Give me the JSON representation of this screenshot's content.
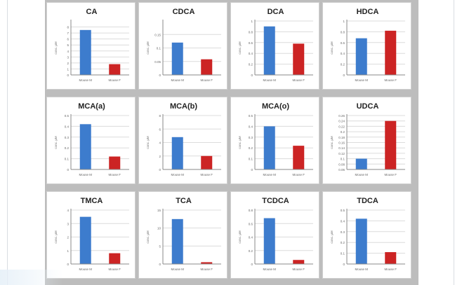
{
  "colors": {
    "wild_type": "#3d7ccd",
    "knockout": "#cc2424"
  },
  "chart_data": [
    {
      "type": "bar",
      "title": "CA",
      "ylabel": "conc. µM",
      "categories": [
        "Mouse M",
        "Mouse F"
      ],
      "values": [
        7.5,
        1.8
      ],
      "ylim": [
        0,
        9
      ],
      "yticks": [
        "0",
        "1",
        "2",
        "3",
        "4",
        "5",
        "6",
        "7",
        "8"
      ]
    },
    {
      "type": "bar",
      "title": "CDCA",
      "ylabel": "conc. µM",
      "categories": [
        "Mouse M",
        "Mouse F"
      ],
      "values": [
        0.12,
        0.058
      ],
      "ylim": [
        0,
        0.2
      ],
      "yticks": [
        "0",
        "0.05",
        "0.1",
        "0.15"
      ]
    },
    {
      "type": "bar",
      "title": "DCA",
      "ylabel": "conc. µM",
      "categories": [
        "Mouse M",
        "Mouse F"
      ],
      "values": [
        0.9,
        0.58
      ],
      "ylim": [
        0,
        1
      ],
      "yticks": [
        "0",
        "0.2",
        "0.4",
        "0.6",
        "0.8",
        "1"
      ]
    },
    {
      "type": "bar",
      "title": "HDCA",
      "ylabel": "conc. µM",
      "categories": [
        "Mouse M",
        "Mouse F"
      ],
      "values": [
        0.68,
        0.82
      ],
      "ylim": [
        0,
        1
      ],
      "yticks": [
        "0",
        "0.2",
        "0.4",
        "0.6",
        "0.8",
        "1"
      ]
    },
    {
      "type": "bar",
      "title": "MCA(a)",
      "ylabel": "conc. µM",
      "categories": [
        "Mouse M",
        "Mouse F"
      ],
      "values": [
        0.42,
        0.12
      ],
      "ylim": [
        0,
        0.5
      ],
      "yticks": [
        "0",
        "0.1",
        "0.2",
        "0.3",
        "0.4",
        "0.5"
      ]
    },
    {
      "type": "bar",
      "title": "MCA(b)",
      "ylabel": "conc. µM",
      "categories": [
        "Mouse M",
        "Mouse F"
      ],
      "values": [
        4.8,
        2.0
      ],
      "ylim": [
        0,
        8
      ],
      "yticks": [
        "0",
        "2",
        "4",
        "6",
        "8"
      ]
    },
    {
      "type": "bar",
      "title": "MCA(o)",
      "ylabel": "conc. µM",
      "categories": [
        "Mouse M",
        "Mouse F"
      ],
      "values": [
        0.4,
        0.22
      ],
      "ylim": [
        0,
        0.5
      ],
      "yticks": [
        "0",
        "0.1",
        "0.2",
        "0.3",
        "0.4",
        "0.5"
      ]
    },
    {
      "type": "bar",
      "title": "UDCA",
      "ylabel": "conc. µM",
      "categories": [
        "Mouse M",
        "Mouse F"
      ],
      "values": [
        0.1,
        0.24
      ],
      "ylim": [
        0.06,
        0.26
      ],
      "yticks": [
        "0.06",
        "0.08",
        "0.1",
        "0.12",
        "0.14",
        "0.16",
        "0.18",
        "0.2",
        "0.22",
        "0.24",
        "0.26"
      ]
    },
    {
      "type": "bar",
      "title": "TMCA",
      "ylabel": "conc. µM",
      "categories": [
        "Mouse M",
        "Mouse F"
      ],
      "values": [
        3.5,
        0.8
      ],
      "ylim": [
        0,
        4
      ],
      "yticks": [
        "0",
        "1",
        "2",
        "3",
        "4"
      ]
    },
    {
      "type": "bar",
      "title": "TCA",
      "ylabel": "conc. µM",
      "categories": [
        "Mouse M",
        "Mouse F"
      ],
      "values": [
        12.5,
        0.5
      ],
      "ylim": [
        0,
        15
      ],
      "yticks": [
        "0",
        "5",
        "10",
        "15"
      ]
    },
    {
      "type": "bar",
      "title": "TCDCA",
      "ylabel": "conc. µM",
      "categories": [
        "Mouse M",
        "Mouse F"
      ],
      "values": [
        0.68,
        0.06
      ],
      "ylim": [
        0,
        0.8
      ],
      "yticks": [
        "0",
        "0.2",
        "0.4",
        "0.6",
        "0.8"
      ]
    },
    {
      "type": "bar",
      "title": "TDCA",
      "ylabel": "conc. µM",
      "categories": [
        "Mouse M",
        "Mouse F"
      ],
      "values": [
        0.42,
        0.11
      ],
      "ylim": [
        0,
        0.5
      ],
      "yticks": [
        "0",
        "0.1",
        "0.2",
        "0.3",
        "0.4",
        "0.5"
      ]
    }
  ]
}
